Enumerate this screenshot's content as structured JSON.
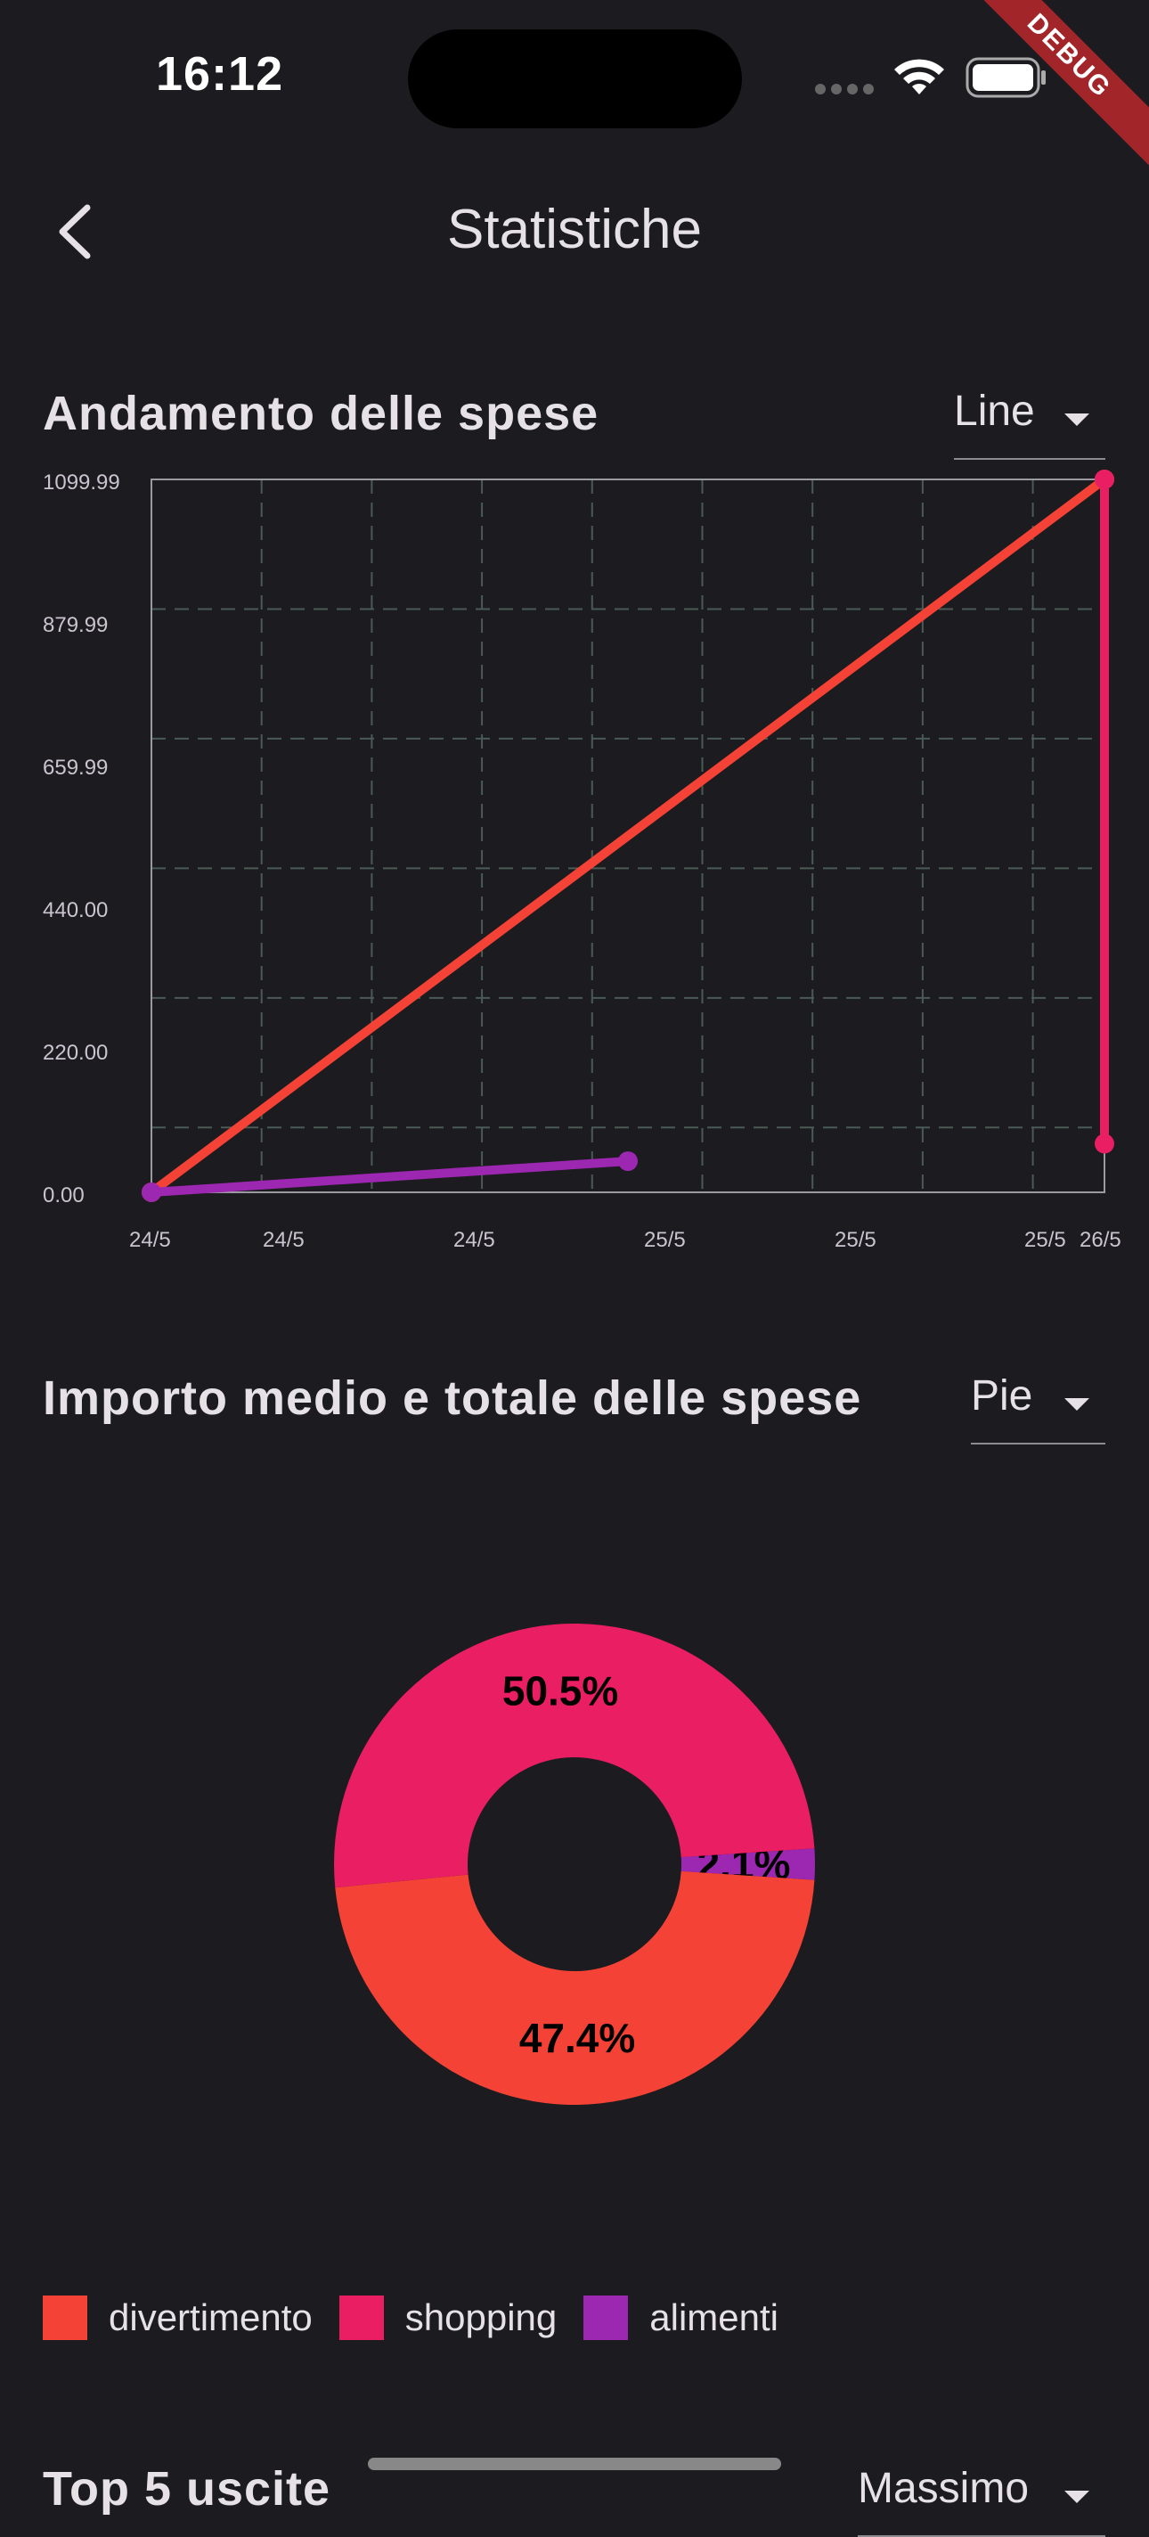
{
  "status_bar": {
    "time": "16:12"
  },
  "debug_label": "DEBUG",
  "header": {
    "title": "Statistiche"
  },
  "line_section": {
    "title": "Andamento delle spese",
    "chart_type_selected": "Line"
  },
  "pie_section": {
    "title": "Importo medio e totale delle spese",
    "chart_type_selected": "Pie"
  },
  "top_section": {
    "title": "Top 5 uscite",
    "filter_selected": "Massimo"
  },
  "legend": [
    {
      "label": "divertimento",
      "color": "#f44336"
    },
    {
      "label": "shopping",
      "color": "#e91e63"
    },
    {
      "label": "alimenti",
      "color": "#9c27b0"
    }
  ],
  "chart_data": [
    {
      "type": "line",
      "title": "Andamento delle spese",
      "yticks": [
        "1099.99",
        "879.99",
        "659.99",
        "440.00",
        "220.00",
        "0.00"
      ],
      "ylim": [
        0,
        1099.99
      ],
      "xticks": [
        "24/5",
        "24/5",
        "24/5",
        "25/5",
        "25/5",
        "25/5",
        "26/5"
      ],
      "xlim": [
        0,
        1
      ],
      "grid": true,
      "series": [
        {
          "name": "divertimento",
          "color": "#f44336",
          "points": [
            [
              0,
              0
            ],
            [
              1,
              1099.99
            ]
          ]
        },
        {
          "name": "alimenti",
          "color": "#9c27b0",
          "points": [
            [
              0,
              0
            ],
            [
              0.5,
              48
            ]
          ]
        },
        {
          "name": "shopping",
          "color": "#e91e63",
          "points": [
            [
              1,
              1099.99
            ],
            [
              1,
              75
            ]
          ]
        }
      ]
    },
    {
      "type": "pie",
      "title": "Importo medio e totale delle spese",
      "slices": [
        {
          "name": "alimenti",
          "value": 2.1,
          "label": "2.1%",
          "color": "#9c27b0"
        },
        {
          "name": "divertimento",
          "value": 47.4,
          "label": "47.4%",
          "color": "#f44336"
        },
        {
          "name": "shopping",
          "value": 50.5,
          "label": "50.5%",
          "color": "#e91e63"
        }
      ]
    }
  ]
}
